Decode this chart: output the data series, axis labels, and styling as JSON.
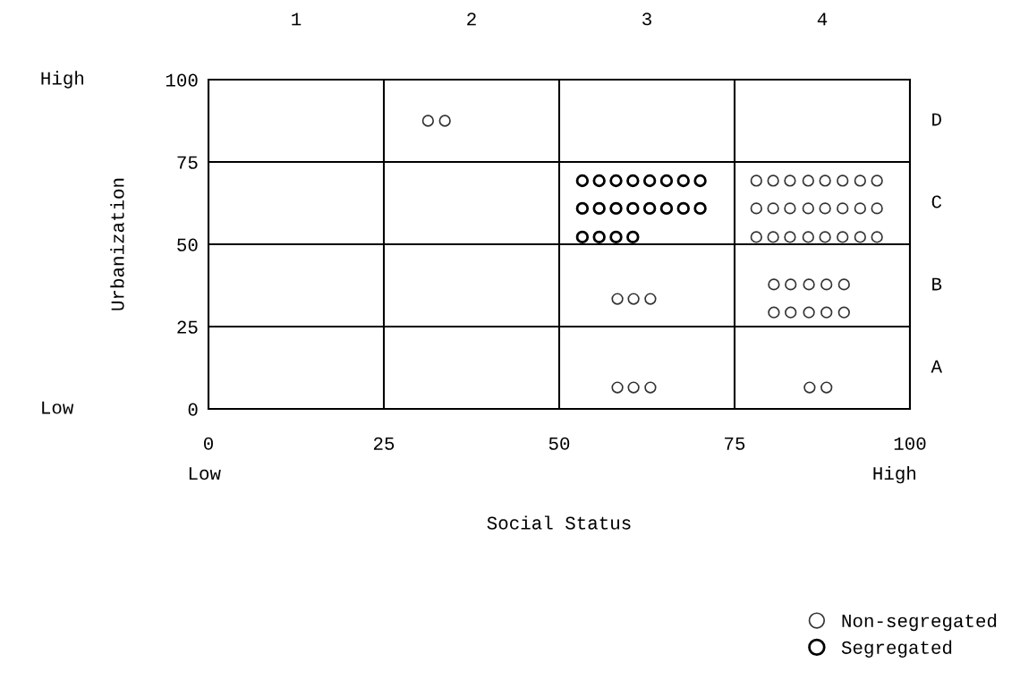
{
  "chart_data": {
    "type": "scatter",
    "xlabel": "Social Status",
    "ylabel": "Urbanization",
    "xlim": [
      0,
      100
    ],
    "ylim": [
      0,
      100
    ],
    "xticks": [
      0,
      25,
      50,
      75,
      100
    ],
    "yticks": [
      0,
      25,
      50,
      75,
      100
    ],
    "annotations": [
      "High",
      "Low",
      "Low",
      "High",
      "1",
      "2",
      "3",
      "4",
      "D",
      "C",
      "B",
      "A"
    ],
    "grid": true,
    "legend": "bottom right",
    "marker": "circle",
    "series": [
      {
        "name": "Non-segregated",
        "color": "#333333",
        "x": [
          31.3,
          33.7,
          78.1,
          80.5,
          82.9,
          85.5,
          87.9,
          90.4,
          92.9,
          95.3,
          78.1,
          80.5,
          82.9,
          85.5,
          87.9,
          90.4,
          92.9,
          95.3,
          78.1,
          80.5,
          82.9,
          85.5,
          87.9,
          90.4,
          92.9,
          95.3,
          58.3,
          60.6,
          63.0,
          80.6,
          83.0,
          85.6,
          88.1,
          90.6,
          80.6,
          83.0,
          85.6,
          88.1,
          90.6,
          58.3,
          60.6,
          63.0,
          85.7,
          88.1
        ],
        "values": [
          87.5,
          87.5,
          69.3,
          69.3,
          69.3,
          69.3,
          69.3,
          69.3,
          69.3,
          69.3,
          60.9,
          60.9,
          60.9,
          60.9,
          60.9,
          60.9,
          60.9,
          60.9,
          52.2,
          52.2,
          52.2,
          52.2,
          52.2,
          52.2,
          52.2,
          52.2,
          33.4,
          33.4,
          33.4,
          37.8,
          37.8,
          37.8,
          37.8,
          37.8,
          29.3,
          29.3,
          29.3,
          29.3,
          29.3,
          6.5,
          6.5,
          6.5,
          6.5,
          6.5
        ]
      },
      {
        "name": "Segregated",
        "color": "#000000",
        "x": [
          53.3,
          55.7,
          58.1,
          60.5,
          62.9,
          65.3,
          67.7,
          70.1,
          53.3,
          55.7,
          58.1,
          60.5,
          62.9,
          65.3,
          67.7,
          70.1,
          53.3,
          55.7,
          58.1,
          60.5
        ],
        "values": [
          69.3,
          69.3,
          69.3,
          69.3,
          69.3,
          69.3,
          69.3,
          69.3,
          60.9,
          60.9,
          60.9,
          60.9,
          60.9,
          60.9,
          60.9,
          60.9,
          52.2,
          52.2,
          52.2,
          52.2
        ]
      }
    ]
  }
}
